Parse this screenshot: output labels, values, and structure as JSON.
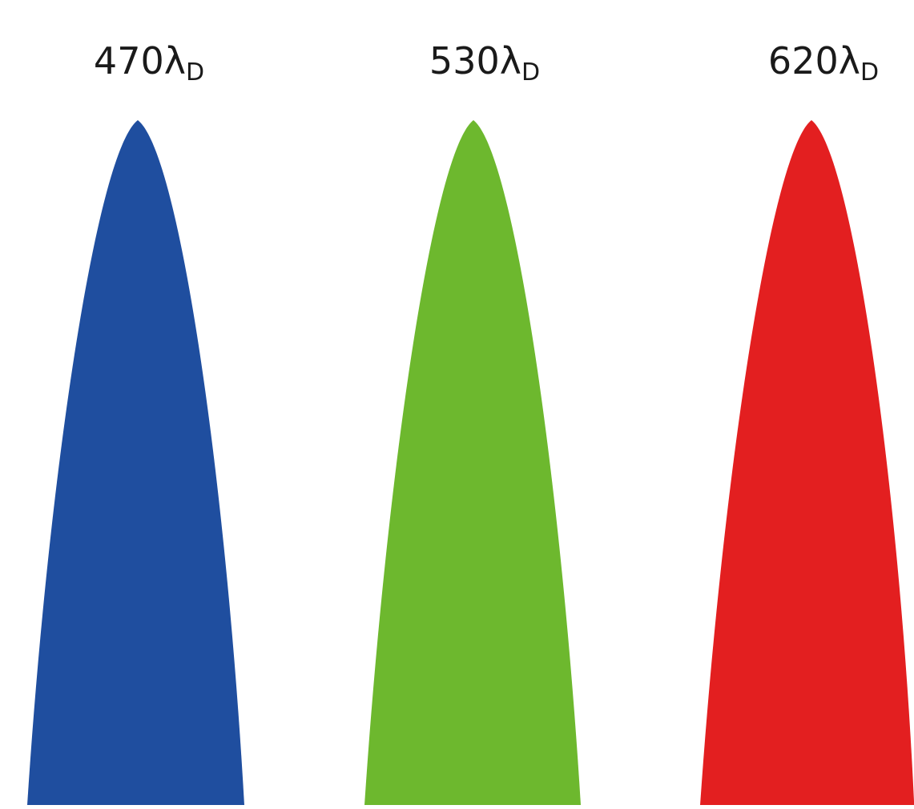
{
  "peaks": [
    {
      "value": "470",
      "symbol": "λ",
      "subscript": "D",
      "color": "#1f4e9f"
    },
    {
      "value": "530",
      "symbol": "λ",
      "subscript": "D",
      "color": "#6db82e"
    },
    {
      "value": "620",
      "symbol": "λ",
      "subscript": "D",
      "color": "#e31f20"
    }
  ]
}
